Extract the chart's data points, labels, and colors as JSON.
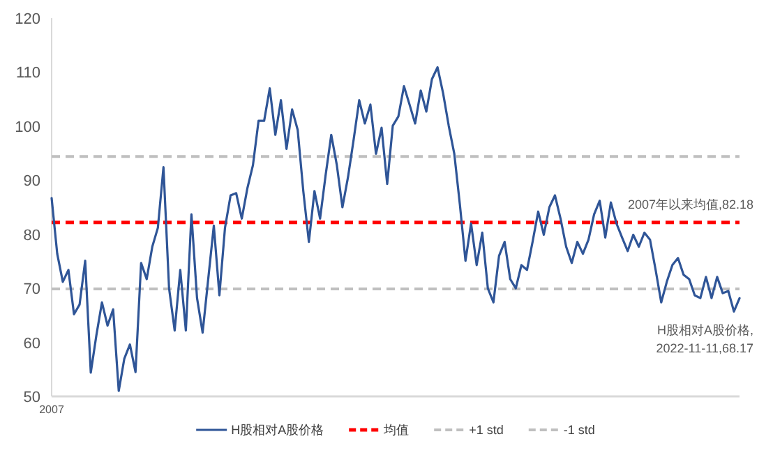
{
  "chart_data": {
    "type": "line",
    "categories": [
      null,
      null,
      null,
      null,
      null,
      null,
      null,
      null,
      null,
      null,
      null,
      null,
      null,
      null,
      null,
      null,
      null,
      null,
      null,
      null,
      null,
      null,
      null,
      null,
      null,
      null,
      null,
      null,
      null,
      null,
      null,
      null,
      null,
      null,
      null,
      null,
      null,
      null,
      null,
      null,
      null,
      null,
      null,
      null,
      null,
      null,
      null,
      null,
      null,
      null,
      null,
      null,
      null,
      null,
      null,
      null,
      null,
      null,
      null,
      null,
      null,
      null,
      null,
      null,
      null,
      null,
      null,
      null,
      null,
      null,
      null,
      null,
      null,
      null,
      null,
      null,
      null,
      null,
      null,
      null,
      null,
      null,
      null,
      null,
      null,
      null,
      null,
      null,
      null,
      null,
      null,
      null,
      null,
      null,
      null,
      null,
      null,
      null,
      null,
      null,
      null,
      null,
      null,
      null,
      null,
      null,
      null,
      null,
      null,
      null,
      null,
      null,
      null,
      null,
      null,
      null,
      null,
      null,
      null,
      null,
      null,
      null,
      null,
      null
    ],
    "series": [
      {
        "name": "H股相对A股价格",
        "color": "#2f5597",
        "values": [
          86.7,
          76.4,
          71.2,
          73.4,
          65.2,
          67,
          75.1,
          54.4,
          61.3,
          67.4,
          63.1,
          66.1,
          51,
          57,
          59.6,
          54.5,
          74.7,
          71.7,
          77.7,
          81.2,
          92.4,
          70,
          62.2,
          73.4,
          62.2,
          83.7,
          68.2,
          61.8,
          71.7,
          81.6,
          68.7,
          81.2,
          87.2,
          87.6,
          82.9,
          88.5,
          92.8,
          101,
          101,
          107,
          98.4,
          104.8,
          95.8,
          103.1,
          99.3,
          88,
          78.6,
          88,
          82.9,
          91,
          98.4,
          92.8,
          85,
          90.6,
          97.5,
          104.8,
          100.5,
          104,
          94.9,
          99.7,
          89.3,
          100.1,
          101.8,
          107.4,
          104,
          100.5,
          106.6,
          102.7,
          108.7,
          110.9,
          106.1,
          100.1,
          94.9,
          85.5,
          75.1,
          82,
          74.3,
          80.3,
          70,
          67.4,
          76,
          78.6,
          71.7,
          70,
          74.3,
          73.4,
          78.6,
          84.2,
          79.9,
          85,
          87.2,
          82.9,
          77.7,
          74.7,
          78.6,
          76.4,
          79,
          83.7,
          86.2,
          79.4,
          85.9,
          82,
          79.4,
          76.9,
          79.9,
          77.7,
          80.3,
          79,
          73.4,
          67.4,
          71.2,
          74.3,
          75.6,
          72.5,
          71.7,
          68.7,
          68.2,
          72.1,
          68.2,
          72.1,
          69.1,
          69.5,
          65.7,
          68.17
        ]
      }
    ],
    "ylim": [
      50,
      120
    ],
    "yticks": [
      50,
      60,
      70,
      80,
      90,
      100,
      110,
      120
    ],
    "ref_lines": [
      {
        "axis": "y",
        "value": 82.18,
        "label": "均值",
        "color": "#ff0000",
        "line_style": "dashed"
      },
      {
        "axis": "y",
        "value": 94.4,
        "label": "+1 std",
        "color": "#bfbfbf",
        "line_style": "dashed"
      },
      {
        "axis": "y",
        "value": 69.9,
        "label": "-1 std",
        "color": "#bfbfbf",
        "line_style": "dashed"
      }
    ],
    "annotations": [
      "2007",
      {
        "text": "2007年以来均值,82.18",
        "y": 82.18
      },
      {
        "text": "H股相对A股价格,\n2022-11-11,68.17",
        "y": 68.17
      }
    ],
    "legend": "bottom"
  }
}
